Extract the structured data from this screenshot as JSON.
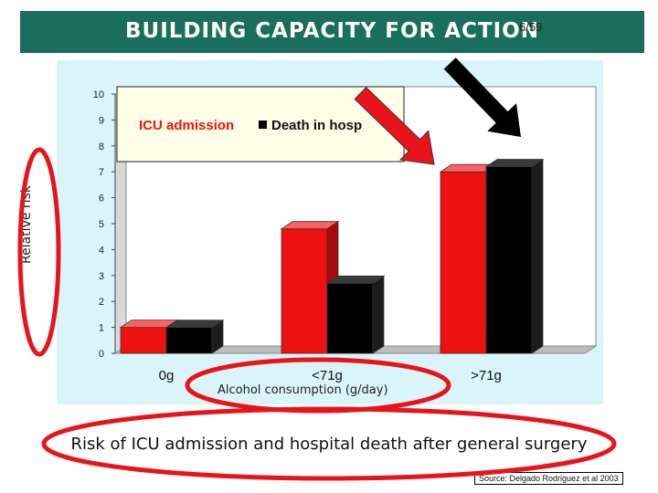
{
  "slide": {
    "title": "BUILDING CAPACITY FOR ACTION",
    "slide_number": "6/59",
    "caption": "Risk of ICU admission and hospital death after general surgery",
    "source": "Source: Delgado Rodriguez et al 2003"
  },
  "colors": {
    "title_bar": "#1a6e5e",
    "chart_background": "#d9f5f9",
    "highlight_ellipse": "#e8141c",
    "red_arrow": "#e8141c",
    "black_arrow": "#000000"
  },
  "chart_data": {
    "type": "bar",
    "title": "",
    "xlabel": "Alcohol consumption (g/day)",
    "ylabel": "Relative risk",
    "categories": [
      "0g",
      "<71g",
      ">71g"
    ],
    "series": [
      {
        "name": "ICU admission",
        "values": [
          1.0,
          4.8,
          7.0
        ],
        "color": "#ee1111"
      },
      {
        "name": "Death in hospital",
        "values": [
          1.0,
          2.7,
          7.2
        ],
        "color": "#000000"
      }
    ],
    "legend_text": [
      "ICU admission",
      "Death in hosp"
    ],
    "ylim": [
      0,
      10
    ],
    "yticks": [
      "0",
      "1",
      "2",
      "3",
      "4",
      "5",
      "6",
      "7",
      "8",
      "9",
      "10"
    ],
    "grid": false,
    "style": "3d",
    "legend_position": "top"
  }
}
